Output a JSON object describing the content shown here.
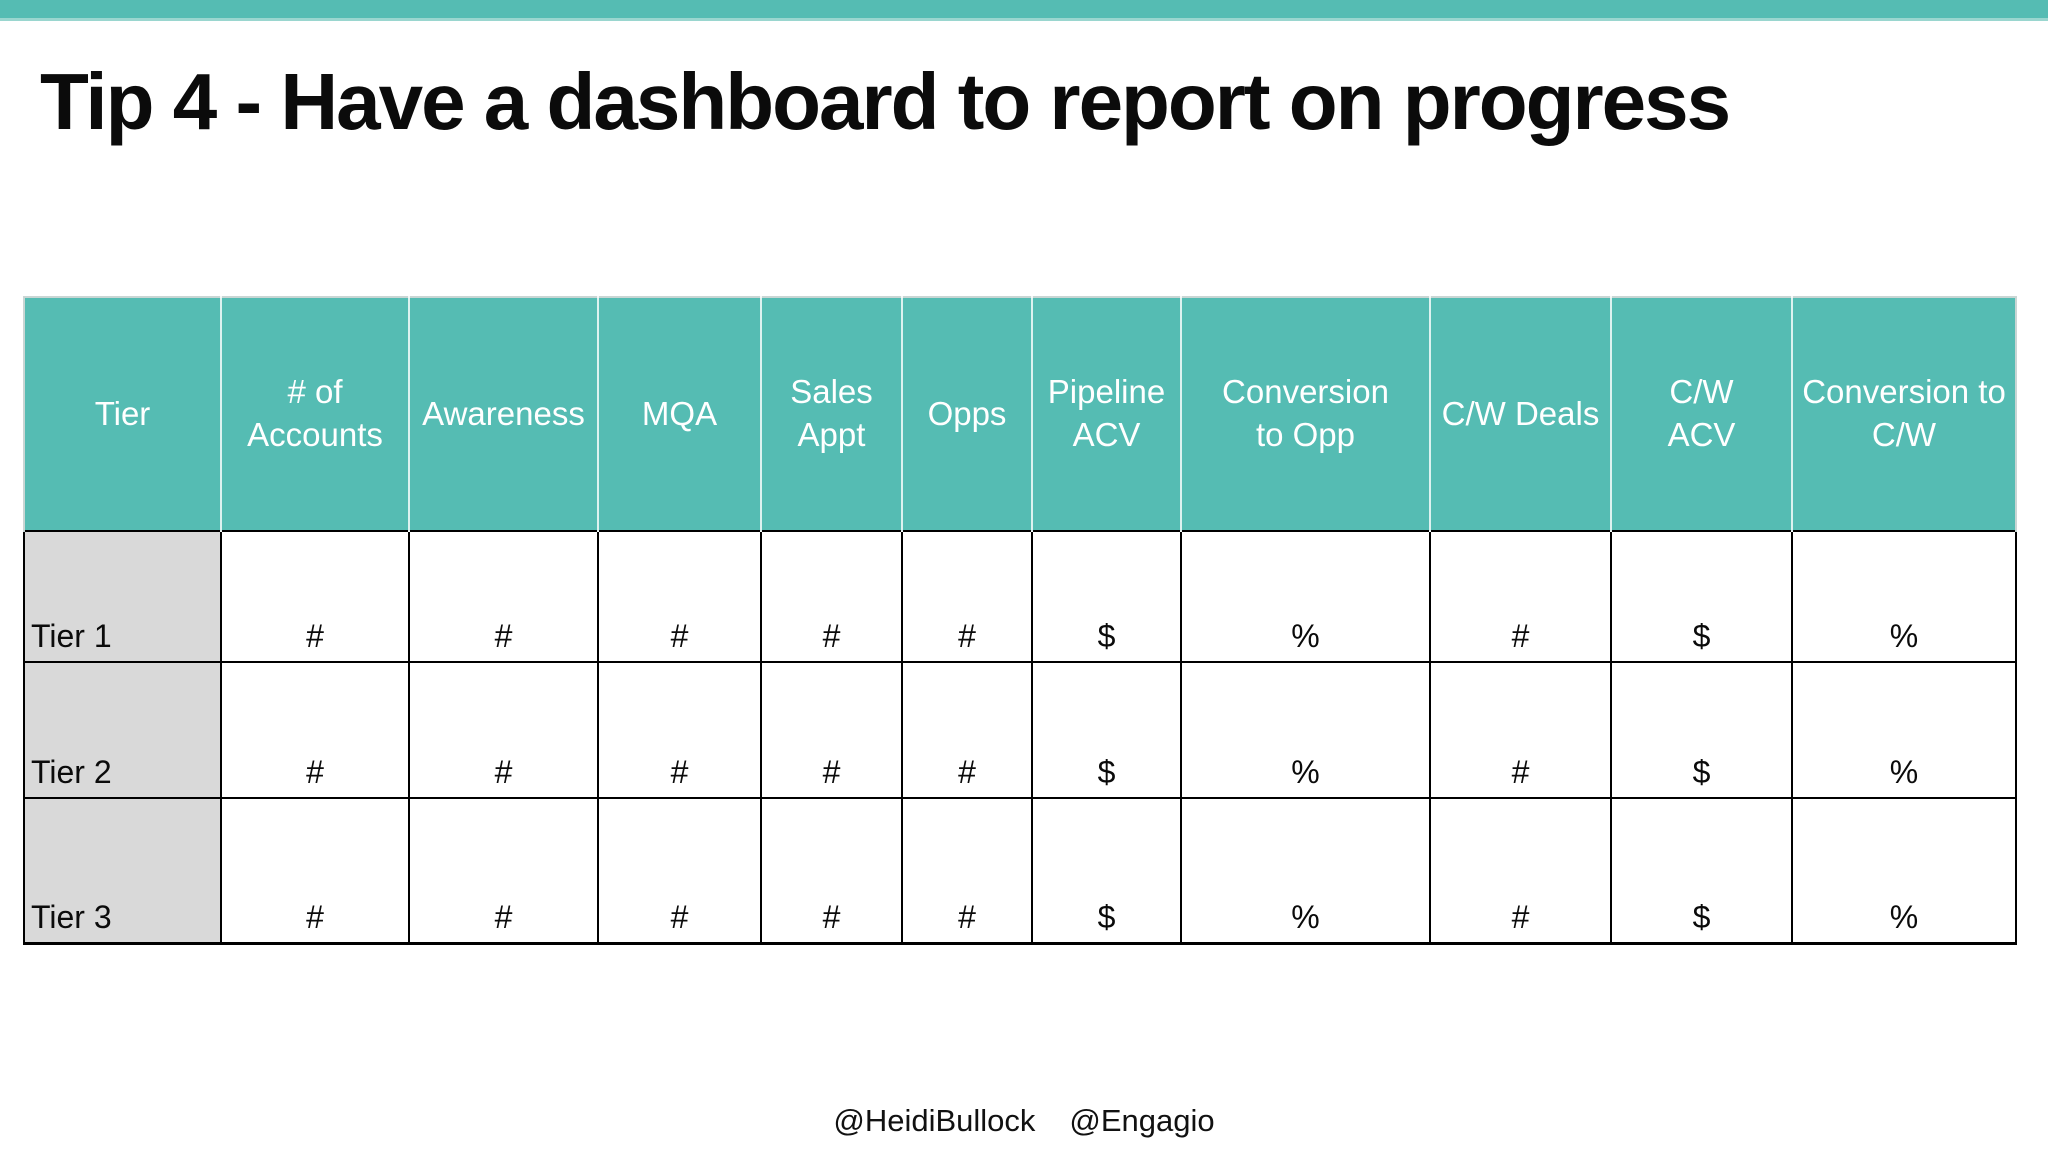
{
  "accent_color": "#55BCB3",
  "tier_cell_color": "#D9D9D9",
  "title": "Tip 4 - Have a dashboard to report on progress",
  "table": {
    "columns": [
      {
        "id": "tier",
        "label": "Tier",
        "lines": [
          "Tier"
        ]
      },
      {
        "id": "num-accounts",
        "label": "# of Accounts",
        "lines": [
          "# of",
          "Accounts"
        ]
      },
      {
        "id": "awareness",
        "label": "Awareness",
        "lines": [
          "Awareness"
        ]
      },
      {
        "id": "mqa",
        "label": "MQA",
        "lines": [
          "MQA"
        ]
      },
      {
        "id": "sales-appt",
        "label": "Sales Appt",
        "lines": [
          "Sales",
          "Appt"
        ]
      },
      {
        "id": "opps",
        "label": "Opps",
        "lines": [
          "Opps"
        ]
      },
      {
        "id": "pipeline-acv",
        "label": "Pipeline ACV",
        "lines": [
          "Pipeline",
          "ACV"
        ]
      },
      {
        "id": "conversion-to-opp",
        "label": "Conversion to Opp",
        "lines": [
          "Conversion",
          "to Opp"
        ]
      },
      {
        "id": "cw-deals",
        "label": "C/W Deals",
        "lines": [
          "C/W Deals"
        ]
      },
      {
        "id": "cw-acv",
        "label": "C/W ACV",
        "lines": [
          "C/W",
          "ACV"
        ]
      },
      {
        "id": "conversion-to-cw",
        "label": "Conversion to C/W",
        "lines": [
          "Conversion to",
          "C/W"
        ]
      }
    ],
    "rows": [
      {
        "tier": "Tier 1",
        "values": [
          "#",
          "#",
          "#",
          "#",
          "#",
          "$",
          "%",
          "#",
          "$",
          "%"
        ]
      },
      {
        "tier": "Tier 2",
        "values": [
          "#",
          "#",
          "#",
          "#",
          "#",
          "$",
          "%",
          "#",
          "$",
          "%"
        ]
      },
      {
        "tier": "Tier 3",
        "values": [
          "#",
          "#",
          "#",
          "#",
          "#",
          "$",
          "%",
          "#",
          "$",
          "%"
        ]
      }
    ]
  },
  "footer": {
    "handles": [
      "@HeidiBullock",
      "@Engagio"
    ]
  }
}
